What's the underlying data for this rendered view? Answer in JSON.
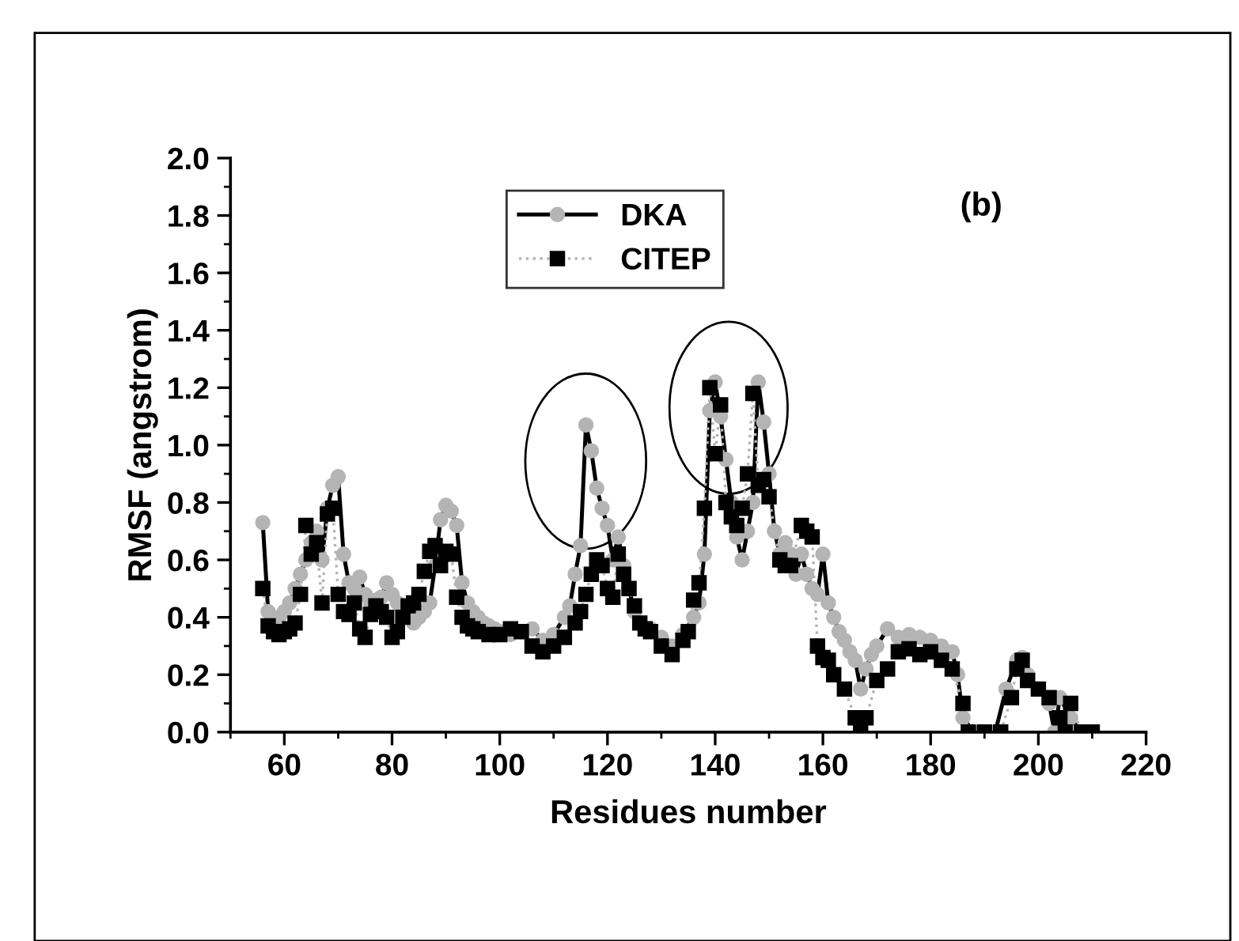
{
  "chart_data": {
    "type": "line",
    "xlabel": "Residues number",
    "ylabel": "RMSF (angstrom)",
    "xlim": [
      50,
      220
    ],
    "xticks": [
      60,
      80,
      100,
      120,
      140,
      160,
      180,
      200,
      220
    ],
    "ylim": [
      0,
      2.0
    ],
    "yticks": [
      {
        "value": 0,
        "label": "0.0"
      },
      0.2,
      0.4,
      0.6,
      0.8,
      {
        "value": 1,
        "label": "1.0"
      },
      1.2,
      1.4,
      1.6,
      1.8,
      {
        "value": 2,
        "label": "2.0"
      }
    ],
    "grid": false,
    "legend": "top",
    "annotations": [
      "(b)"
    ],
    "series": [
      {
        "name": "DKA",
        "color": "#b4b4b4",
        "marker": "circle",
        "line_style": "solid",
        "x": [
          56,
          57,
          58,
          59,
          60,
          61,
          62,
          63,
          64,
          65,
          66,
          67,
          68,
          69,
          70,
          71,
          72,
          73,
          74,
          75,
          76,
          77,
          78,
          79,
          80,
          81,
          82,
          83,
          84,
          85,
          86,
          87,
          88,
          89,
          90,
          91,
          92,
          93,
          94,
          95,
          96,
          97,
          98,
          99,
          100,
          102,
          104,
          106,
          108,
          110,
          112,
          113,
          114,
          115,
          116,
          117,
          118,
          119,
          120,
          121,
          122,
          123,
          124,
          125,
          126,
          128,
          130,
          132,
          134,
          136,
          137,
          138,
          139,
          140,
          141,
          142,
          143,
          144,
          145,
          146,
          147,
          148,
          149,
          150,
          151,
          152,
          153,
          154,
          155,
          156,
          157,
          158,
          159,
          160,
          161,
          162,
          163,
          164,
          165,
          166,
          167,
          168,
          169,
          170,
          172,
          174,
          176,
          178,
          180,
          182,
          184,
          185,
          186,
          188,
          190,
          192,
          194,
          196,
          197,
          198,
          200,
          202,
          203,
          204,
          206,
          208,
          210
        ],
        "values": [
          0.73,
          0.42,
          0.38,
          0.4,
          0.42,
          0.45,
          0.5,
          0.55,
          0.6,
          0.66,
          0.7,
          0.6,
          0.78,
          0.86,
          0.89,
          0.62,
          0.52,
          0.5,
          0.54,
          0.48,
          0.45,
          0.46,
          0.47,
          0.52,
          0.48,
          0.45,
          0.43,
          0.4,
          0.38,
          0.4,
          0.42,
          0.45,
          0.58,
          0.74,
          0.79,
          0.77,
          0.72,
          0.52,
          0.45,
          0.42,
          0.4,
          0.38,
          0.37,
          0.36,
          0.35,
          0.34,
          0.35,
          0.36,
          0.32,
          0.34,
          0.4,
          0.44,
          0.55,
          0.65,
          1.07,
          0.98,
          0.85,
          0.78,
          0.72,
          0.6,
          0.68,
          0.58,
          0.5,
          0.42,
          0.38,
          0.36,
          0.33,
          0.3,
          0.34,
          0.4,
          0.45,
          0.62,
          1.12,
          1.22,
          1.1,
          0.95,
          0.8,
          0.68,
          0.6,
          0.7,
          0.8,
          1.22,
          1.08,
          0.9,
          0.7,
          0.62,
          0.66,
          0.62,
          0.55,
          0.62,
          0.55,
          0.5,
          0.48,
          0.62,
          0.45,
          0.4,
          0.35,
          0.32,
          0.28,
          0.25,
          0.15,
          0.22,
          0.27,
          0.3,
          0.36,
          0.33,
          0.34,
          0.33,
          0.32,
          0.3,
          0.28,
          0.2,
          0.05,
          0.0,
          0.0,
          0.0,
          0.15,
          0.25,
          0.26,
          0.2,
          0.15,
          0.1,
          0.0,
          0.12,
          0.05,
          0.0,
          0.0
        ]
      },
      {
        "name": "CITEP",
        "color": "#000000",
        "marker": "square",
        "line_style": "dotted",
        "x": [
          56,
          57,
          58,
          59,
          60,
          61,
          62,
          63,
          64,
          65,
          66,
          67,
          68,
          69,
          70,
          71,
          72,
          73,
          74,
          75,
          76,
          77,
          78,
          79,
          80,
          81,
          82,
          83,
          84,
          85,
          86,
          87,
          88,
          89,
          90,
          91,
          92,
          93,
          94,
          95,
          96,
          98,
          100,
          102,
          104,
          106,
          108,
          110,
          112,
          114,
          115,
          116,
          117,
          118,
          119,
          120,
          121,
          122,
          123,
          124,
          125,
          126,
          127,
          128,
          130,
          132,
          134,
          135,
          136,
          137,
          138,
          139,
          140,
          141,
          142,
          143,
          144,
          145,
          146,
          147,
          148,
          149,
          150,
          152,
          153,
          154,
          156,
          157,
          158,
          159,
          160,
          161,
          162,
          164,
          166,
          167,
          168,
          170,
          172,
          174,
          176,
          178,
          180,
          182,
          184,
          186,
          187,
          190,
          193,
          195,
          196,
          197,
          198,
          200,
          202,
          204,
          205,
          206,
          208,
          210
        ],
        "values": [
          0.5,
          0.37,
          0.35,
          0.34,
          0.35,
          0.36,
          0.38,
          0.48,
          0.72,
          0.62,
          0.66,
          0.45,
          0.76,
          0.78,
          0.48,
          0.42,
          0.41,
          0.45,
          0.36,
          0.33,
          0.41,
          0.44,
          0.42,
          0.4,
          0.33,
          0.35,
          0.4,
          0.44,
          0.45,
          0.48,
          0.56,
          0.63,
          0.65,
          0.58,
          0.63,
          0.62,
          0.47,
          0.4,
          0.37,
          0.36,
          0.35,
          0.34,
          0.34,
          0.36,
          0.35,
          0.3,
          0.28,
          0.3,
          0.33,
          0.38,
          0.42,
          0.48,
          0.55,
          0.6,
          0.58,
          0.5,
          0.47,
          0.62,
          0.55,
          0.5,
          0.44,
          0.38,
          0.36,
          0.35,
          0.3,
          0.27,
          0.32,
          0.35,
          0.46,
          0.52,
          0.78,
          1.2,
          0.97,
          1.14,
          0.8,
          0.75,
          0.72,
          0.78,
          0.9,
          1.18,
          0.86,
          0.88,
          0.82,
          0.6,
          0.58,
          0.58,
          0.72,
          0.7,
          0.68,
          0.3,
          0.26,
          0.25,
          0.2,
          0.15,
          0.05,
          0.0,
          0.05,
          0.18,
          0.22,
          0.28,
          0.29,
          0.27,
          0.28,
          0.25,
          0.22,
          0.1,
          0.0,
          0.0,
          0.0,
          0.12,
          0.22,
          0.25,
          0.18,
          0.15,
          0.12,
          0.05,
          0.0,
          0.1,
          0.0,
          0.0
        ]
      }
    ]
  }
}
